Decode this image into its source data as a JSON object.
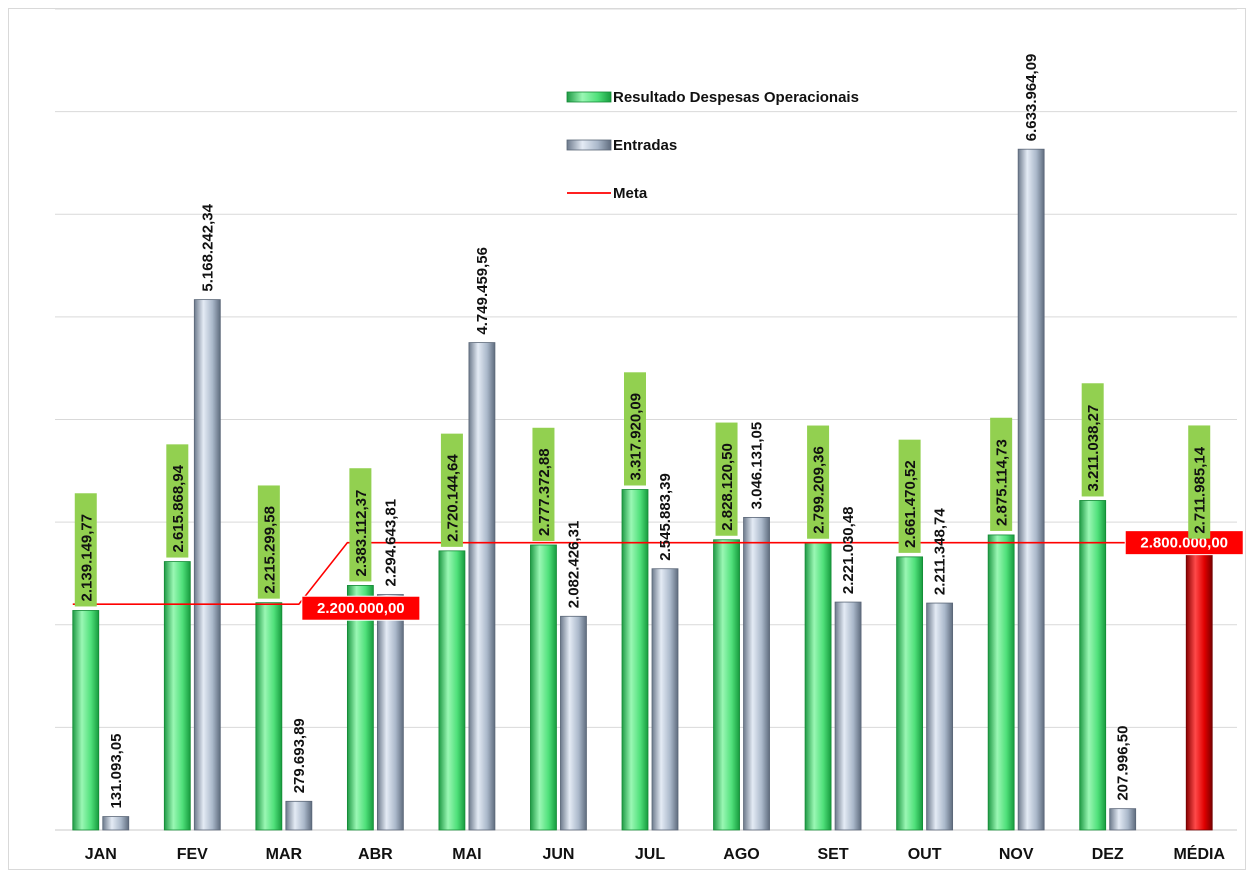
{
  "chart_data": {
    "type": "bar",
    "categories": [
      "JAN",
      "FEV",
      "MAR",
      "ABR",
      "MAI",
      "JUN",
      "JUL",
      "AGO",
      "SET",
      "OUT",
      "NOV",
      "DEZ",
      "MÉDIA"
    ],
    "series": [
      {
        "name": "Resultado Despesas Operacionais",
        "color": "#4fe07a",
        "values": [
          2139149.77,
          2615868.94,
          2215299.58,
          2383112.37,
          2720144.64,
          2777372.88,
          3317920.09,
          2828120.5,
          2799209.36,
          2661470.52,
          2875114.73,
          3211038.27,
          2711985.14
        ],
        "labels": [
          "2.139.149,77",
          "2.615.868,94",
          "2.215.299,58",
          "2.383.112,37",
          "2.720.144,64",
          "2.777.372,88",
          "3.317.920,09",
          "2.828.120,50",
          "2.799.209,36",
          "2.661.470,52",
          "2.875.114,73",
          "3.211.038,27",
          "2.711.985,14"
        ]
      },
      {
        "name": "Entradas",
        "color": "#a9b8cc",
        "values": [
          131093.05,
          5168242.34,
          279693.89,
          2294643.81,
          4749459.56,
          2082426.31,
          2545883.39,
          3046131.05,
          2221030.48,
          2211348.74,
          6633964.09,
          207996.5,
          null
        ],
        "labels": [
          "131.093,05",
          "5.168.242,34",
          "279.693,89",
          "2.294.643,81",
          "4.749.459,56",
          "2.082.426,31",
          "2.545.883,39",
          "3.046.131,05",
          "2.221.030,48",
          "2.211.348,74",
          "6.633.964,09",
          "207.996,50",
          ""
        ]
      },
      {
        "name": "Meta",
        "color": "#ff0000",
        "values": [
          2200000,
          2200000,
          2200000,
          2800000,
          2800000,
          2800000,
          2800000,
          2800000,
          2800000,
          2800000,
          2800000,
          2800000,
          2800000
        ]
      }
    ],
    "meta_labels": [
      {
        "text": "2.200.000,00",
        "value": 2200000,
        "anchor_category": "MAR"
      },
      {
        "text": "2.800.000,00",
        "value": 2800000,
        "anchor_category": "MÉDIA"
      }
    ],
    "average_bar_color": "#e00000",
    "ylim": [
      0,
      8000000
    ],
    "grid": true,
    "legend_position": "top-center",
    "title": "",
    "xlabel": "",
    "ylabel": ""
  }
}
